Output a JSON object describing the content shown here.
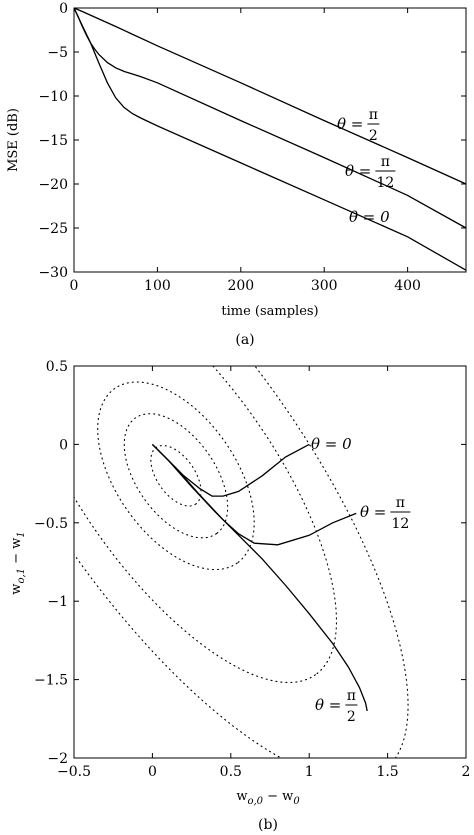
{
  "chart_data": [
    {
      "type": "line",
      "caption": "(a)",
      "xlabel": "time (samples)",
      "ylabel": "MSE (dB)",
      "xlim": [
        0,
        470
      ],
      "ylim": [
        -30,
        0
      ],
      "xticks": [
        "0",
        "100",
        "200",
        "300",
        "400"
      ],
      "yticks": [
        "0",
        "−5",
        "−10",
        "−15",
        "−20",
        "−25",
        "−30"
      ],
      "grid": false,
      "series": [
        {
          "name": "θ = π/2",
          "label": {
            "lhs": "θ =",
            "num": "π",
            "den": "2"
          },
          "x": [
            0,
            10,
            50,
            100,
            200,
            300,
            400,
            470
          ],
          "y": [
            0,
            -0.4,
            -2.1,
            -4.3,
            -8.5,
            -12.8,
            -17.0,
            -20.0
          ]
        },
        {
          "name": "θ = π/12",
          "label": {
            "lhs": "θ =",
            "num": "π",
            "den": "12"
          },
          "x": [
            0,
            5,
            10,
            15,
            20,
            25,
            30,
            40,
            50,
            60,
            80,
            100,
            200,
            300,
            400,
            470
          ],
          "y": [
            0,
            -1.0,
            -2.1,
            -3.1,
            -4.0,
            -4.7,
            -5.3,
            -6.2,
            -6.8,
            -7.2,
            -7.8,
            -8.5,
            -12.8,
            -17.0,
            -21.3,
            -25.0
          ]
        },
        {
          "name": "θ = 0",
          "label": {
            "lhs": "θ = 0"
          },
          "x": [
            0,
            10,
            20,
            30,
            40,
            50,
            60,
            70,
            80,
            100,
            200,
            300,
            400,
            470
          ],
          "y": [
            0,
            -2.0,
            -4.0,
            -6.3,
            -8.5,
            -10.2,
            -11.3,
            -12.0,
            -12.5,
            -13.4,
            -17.6,
            -21.8,
            -26.0,
            -29.8
          ]
        }
      ]
    },
    {
      "type": "line",
      "caption": "(b)",
      "xlabel": "w_{o,0} − w_0",
      "ylabel": "w_{o,1} − w_1",
      "xlim": [
        -0.5,
        2
      ],
      "ylim": [
        -2,
        0.5
      ],
      "xticks": [
        "−0.5",
        "0",
        "0.5",
        "1",
        "1.5",
        "2"
      ],
      "yticks": [
        "0.5",
        "0",
        "−0.5",
        "−1",
        "−1.5",
        "−2"
      ],
      "grid": false,
      "contours": {
        "style": "dotted",
        "center": [
          0.15,
          -0.2
        ],
        "angle_deg": -55,
        "radii": [
          [
            0.22,
            0.12
          ],
          [
            0.45,
            0.25
          ],
          [
            0.68,
            0.38
          ],
          [
            1.55,
            0.62
          ],
          [
            2.3,
            0.82
          ]
        ]
      },
      "series": [
        {
          "name": "θ = 0",
          "label": {
            "lhs": "θ = 0"
          },
          "x": [
            0,
            0.1,
            0.2,
            0.3,
            0.38,
            0.45,
            0.55,
            0.7,
            0.85,
            1.0
          ],
          "y": [
            0,
            -0.1,
            -0.2,
            -0.28,
            -0.33,
            -0.33,
            -0.3,
            -0.2,
            -0.08,
            0
          ]
        },
        {
          "name": "θ = π/12",
          "label": {
            "lhs": "θ =",
            "num": "π",
            "den": "12"
          },
          "x": [
            0,
            0.15,
            0.3,
            0.45,
            0.55,
            0.65,
            0.8,
            1.0,
            1.15,
            1.3
          ],
          "y": [
            0,
            -0.15,
            -0.32,
            -0.48,
            -0.57,
            -0.63,
            -0.64,
            -0.58,
            -0.5,
            -0.44
          ]
        },
        {
          "name": "θ = π/2",
          "label": {
            "lhs": "θ =",
            "num": "π",
            "den": "2"
          },
          "x": [
            0,
            0.1,
            0.25,
            0.4,
            0.55,
            0.7,
            0.85,
            1.0,
            1.15,
            1.25,
            1.32,
            1.36,
            1.37
          ],
          "y": [
            0,
            -0.1,
            -0.27,
            -0.43,
            -0.58,
            -0.73,
            -0.9,
            -1.08,
            -1.27,
            -1.42,
            -1.55,
            -1.65,
            -1.7
          ]
        }
      ]
    }
  ]
}
